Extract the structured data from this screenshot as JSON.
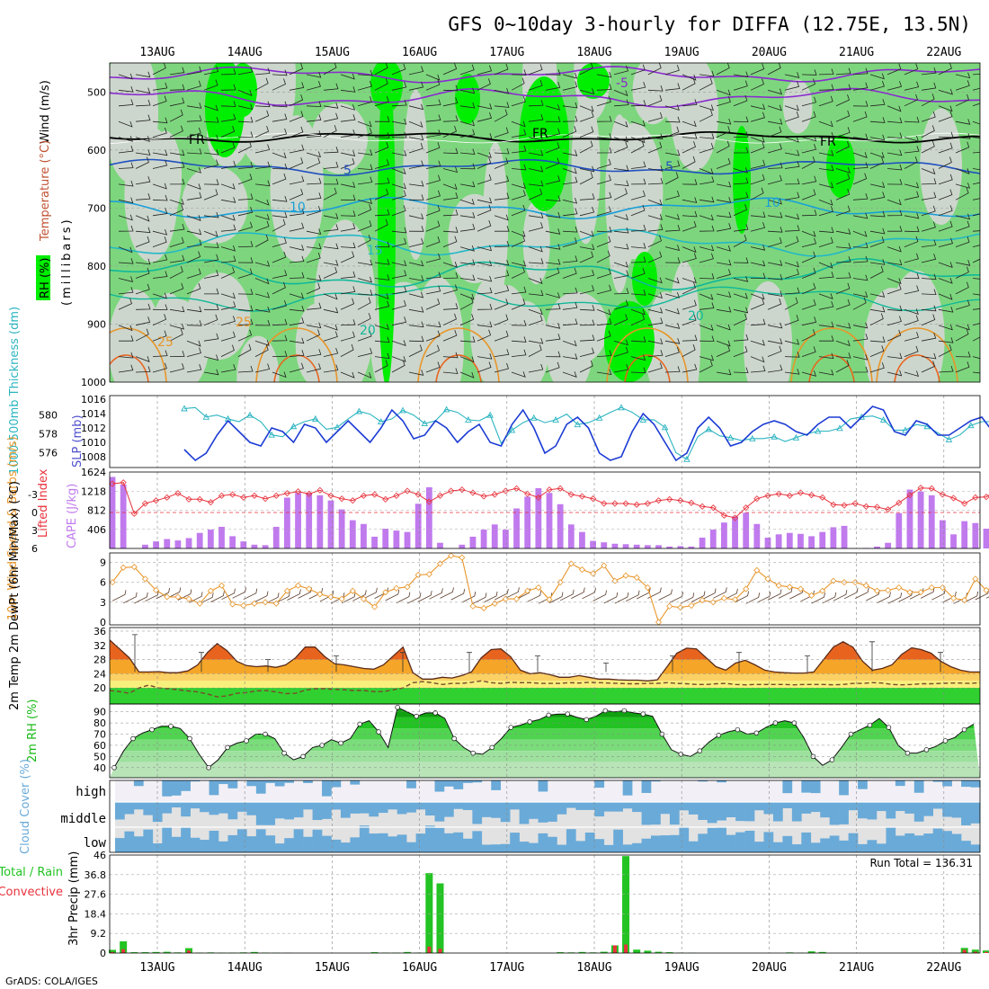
{
  "header": {
    "title": "GFS 0~10day 3-hourly for DIFFA (12.75E, 13.5N)",
    "credit": "GrADS: COLA/IGES"
  },
  "colors": {
    "rh_light": "#cdd6cd",
    "rh_mid": "#7dd67d",
    "rh_bright": "#00ee00",
    "slp": "#1c3cd4",
    "thickness": "#2bb4c0",
    "lifted_index": "#e8323c",
    "cape": "#c07aee",
    "wind10m": "#e8962a",
    "temp_high": "#e8641e",
    "temp_mid": "#f5a628",
    "temp_low": "#fbd064",
    "dew_fill": "#f8f07c",
    "rh2m_fill": "#18b818",
    "cloud": "#6aaad8",
    "cloud_bg": "#e2e2e2",
    "precip_total": "#22c322",
    "precip_conv": "#e8323c"
  },
  "chart_data": {
    "type": "meteogram",
    "title": "GFS 0~10day 3-hourly for DIFFA (12.75E, 13.5N)",
    "x_ticks": [
      "13AUG",
      "14AUG",
      "15AUG",
      "16AUG",
      "17AUG",
      "18AUG",
      "19AUG",
      "20AUG",
      "21AUG",
      "22AUG"
    ],
    "steps_per_day": 8,
    "panels": {
      "upper_air": {
        "ylabel": "(millibars)",
        "ylabel_parts": [
          "RH (%)",
          "Temperature (°C)",
          "Wind (m/s)"
        ],
        "yticks": [
          "500",
          "600",
          "700",
          "800",
          "900",
          "1000"
        ],
        "ylim": [
          1000,
          450
        ],
        "contour_labels": [
          "-5",
          "FR",
          "FR",
          "FR",
          "5",
          "5",
          "10",
          "10",
          "15",
          "20",
          "20",
          "25",
          "25"
        ]
      },
      "slp_thickness": {
        "ylabel_left": "1000-500mb Thickness (dm)",
        "ylabel_right": "SLP (mb)",
        "yticks_left": [
          "580",
          "578",
          "576"
        ],
        "yticks_right": [
          "1016",
          "1014",
          "1012",
          "1010",
          "1008"
        ],
        "slp": [
          1009,
          1007.5,
          1008.5,
          1011,
          1013,
          1011.5,
          1010,
          1009.5,
          1012,
          1011.5,
          1010,
          1012.5,
          1012,
          1010,
          1011.5,
          1013,
          1011.5,
          1010,
          1012,
          1014.5,
          1013,
          1010.5,
          1011,
          1013,
          1012,
          1010,
          1011.5,
          1012.5,
          1010,
          1009.5,
          1012.5,
          1014.5,
          1012,
          1008.5,
          1009.5,
          1012.5,
          1013.5,
          1012,
          1008.5,
          1007.5,
          1008,
          1011.5,
          1014,
          1012.5,
          1010,
          1007.5,
          1008.5,
          1012,
          1013.5,
          1012,
          1009.5,
          1010,
          1011.5,
          1012.5,
          1013,
          1012.5,
          1011.5,
          1011,
          1012.5,
          1013.5,
          1013.5,
          1012,
          1013.5,
          1015,
          1014.5,
          1011.5,
          1011,
          1013,
          1012.5,
          1011,
          1011,
          1012,
          1013,
          1013.5,
          1011.5,
          1010,
          1010.5,
          1012,
          1013.5,
          1014,
          1011.5,
          1009.5,
          1010,
          1012.5,
          1013.5,
          1011,
          1008.5,
          1009,
          1012,
          1012.5,
          1010.5,
          1010,
          1012.5,
          1012.5,
          1011,
          1012
        ],
        "thickness": [
          580.7,
          580.8,
          579.8,
          580.0,
          579.6,
          579.3,
          580.0,
          579.3,
          577.9,
          577.7,
          578.8,
          579.3,
          579.6,
          578.5,
          578.7,
          579.6,
          580.4,
          580.1,
          579.3,
          579.6,
          580.5,
          580.0,
          579.1,
          579.4,
          580.6,
          580.3,
          579.5,
          579.4,
          580.0,
          577.0,
          578.4,
          579.2,
          579.7,
          579.2,
          579.5,
          580.1,
          579.0,
          579.2,
          579.7,
          580.3,
          580.8,
          580.3,
          579.5,
          579.5,
          578.7,
          576.0,
          575.3,
          577.7,
          578.5,
          577.8,
          577.6,
          577.3,
          577.5,
          577.5,
          577.7,
          577.2,
          577.6,
          578.0,
          578.3,
          578.3,
          578.6,
          579.6,
          579.8,
          579.9,
          579.5,
          578.4,
          578.4,
          579.0,
          578.8,
          578.1,
          577.4,
          577.9,
          578.9,
          579.3,
          579.3,
          579.5,
          579.7,
          580.0,
          579.3,
          579.1,
          579.6,
          580.0,
          579.5,
          579.7,
          579.9,
          579.6,
          578.5,
          579.2,
          580.0,
          579.2,
          578.4,
          578.3,
          579.2,
          578.4,
          577.7,
          578.0
        ]
      },
      "cape_li": {
        "ylabel_left": "Lifted Index",
        "ylabel_right": "CAPE (J/kg)",
        "yticks_left": [
          "-3",
          "0",
          "3",
          "6"
        ],
        "yticks_right": [
          "1624",
          "1218",
          "812",
          "406"
        ],
        "cape": [
          1520,
          1360,
          0,
          80,
          150,
          200,
          170,
          220,
          330,
          400,
          460,
          260,
          150,
          80,
          70,
          460,
          1080,
          1180,
          1180,
          1130,
          1020,
          830,
          600,
          520,
          250,
          420,
          380,
          350,
          950,
          1300,
          120,
          0,
          80,
          250,
          400,
          510,
          400,
          850,
          1100,
          1280,
          1180,
          940,
          510,
          350,
          160,
          130,
          100,
          90,
          80,
          70,
          70,
          40,
          50,
          40,
          230,
          400,
          550,
          680,
          760,
          520,
          230,
          300,
          330,
          310,
          260,
          350,
          450,
          480,
          0,
          10,
          40,
          120,
          750,
          1250,
          1210,
          1130,
          600,
          300,
          580,
          540,
          420,
          330,
          850,
          1350,
          780,
          790,
          710,
          540,
          480,
          500,
          480,
          450
        ],
        "lifted_index": [
          -4.8,
          -5.0,
          0.2,
          -1.5,
          -2.0,
          -2.5,
          -3.2,
          -2.2,
          -2.2,
          -1.7,
          -2.8,
          -3.0,
          -2.5,
          -2.8,
          -2.3,
          -2.8,
          -3.2,
          -3.5,
          -3.1,
          -3.7,
          -2.8,
          -2.3,
          -2.0,
          -2.8,
          -3.0,
          -2.2,
          -2.8,
          -3.6,
          -3.0,
          -1.8,
          -2.8,
          -3.6,
          -3.8,
          -3.3,
          -2.7,
          -3.0,
          -3.6,
          -4.0,
          -3.1,
          -2.5,
          -3.8,
          -4.0,
          -3.0,
          -2.7,
          -2.3,
          -1.5,
          -1.5,
          -1.5,
          -1.3,
          -1.5,
          -2.0,
          -2.2,
          -2.0,
          -1.6,
          -1.0,
          -0.8,
          0.5,
          0.9,
          -0.8,
          -2.3,
          -2.8,
          -3.1,
          -2.8,
          -3.3,
          -2.9,
          -2.5,
          -1.3,
          -1.2,
          -1.5,
          -1.0,
          -0.9,
          -0.5,
          -1.6,
          -2.9,
          -4.1,
          -4.0,
          -3.0,
          -2.4,
          -1.5,
          -2.5,
          -2.6,
          -3.9,
          -4.3,
          -3.1,
          -4.6,
          -4.9,
          -4.4,
          -3.9,
          -3.5,
          -3.2,
          -3.0,
          -3.3
        ]
      },
      "wind10m": {
        "ylabel": "10m Wind Speed & Barbs (m/s)",
        "yticks": [
          "9",
          "6",
          "3",
          "0"
        ],
        "speed": [
          6.0,
          8.2,
          8.3,
          6.5,
          4.8,
          3.8,
          3.8,
          3.5,
          2.8,
          4.7,
          5.5,
          2.7,
          2.5,
          2.8,
          3.0,
          2.8,
          4.7,
          5.5,
          5.0,
          4.2,
          3.8,
          3.5,
          4.7,
          3.5,
          2.3,
          4.5,
          5.1,
          5.3,
          7.1,
          7.2,
          8.8,
          10.0,
          9.7,
          2.4,
          2.1,
          2.8,
          3.5,
          3.5,
          4.7,
          5.2,
          3.4,
          6.0,
          8.8,
          7.9,
          7.3,
          8.5,
          6.2,
          7.0,
          6.7,
          5.2,
          0.0,
          2.4,
          2.2,
          2.5,
          3.3,
          3.0,
          3.6,
          3.4,
          5.0,
          7.8,
          6.5,
          5.5,
          5.3,
          5.0,
          4.0,
          4.7,
          6.2,
          6.0,
          6.0,
          5.5,
          4.7,
          4.8,
          5.2,
          4.5,
          4.5,
          5.2,
          5.2,
          3.6,
          3.3,
          6.5,
          4.8,
          5.5,
          7.0,
          6.3,
          6.5,
          6.0,
          7.3,
          9.2,
          8.3,
          6.3,
          6.2,
          4.7,
          3.8,
          3.8,
          5.6,
          5.3
        ]
      },
      "temp2m": {
        "ylabel": "2m Temp 2m DewPt (6hr Min/Max) (°C)",
        "yticks": [
          "36",
          "32",
          "28",
          "24",
          "20"
        ],
        "temp": [
          33.5,
          31.0,
          28.5,
          24.5,
          24.5,
          24.6,
          24.3,
          24.3,
          24.8,
          26.5,
          30.0,
          32.5,
          30.5,
          27.5,
          26.3,
          26.0,
          26.2,
          25.8,
          26.5,
          28.5,
          31.5,
          31.5,
          28.8,
          26.8,
          26.5,
          26.0,
          25.5,
          25.3,
          26.5,
          29.0,
          31.5,
          24.3,
          22.5,
          22.5,
          23.0,
          22.8,
          23.5,
          24.5,
          28.5,
          30.8,
          31.0,
          28.8,
          25.0,
          24.0,
          24.3,
          23.8,
          23.0,
          23.0,
          23.5,
          23.0,
          22.5,
          22.5,
          22.3,
          22.2,
          22.2,
          22.0,
          22.3,
          26.0,
          29.8,
          31.2,
          31.0,
          28.5,
          26.0,
          25.0,
          27.0,
          27.8,
          26.5,
          25.0,
          24.5,
          24.3,
          24.2,
          24.2,
          24.5,
          28.0,
          31.5,
          33.0,
          31.5,
          27.5,
          25.0,
          25.5,
          26.5,
          29.5,
          31.3,
          30.8,
          29.8,
          27.5,
          26.0,
          25.0,
          24.5,
          24.5
        ],
        "dewpoint": [
          19.3,
          19.0,
          18.5,
          20.0,
          20.8,
          20.0,
          19.8,
          19.5,
          19.2,
          18.9,
          18.3,
          17.5,
          17.8,
          18.5,
          18.7,
          19.2,
          19.3,
          18.9,
          18.4,
          18.5,
          19.4,
          19.8,
          19.8,
          19.6,
          19.5,
          19.3,
          19.3,
          19.0,
          19.0,
          19.5,
          20.0,
          21.5,
          21.8,
          21.5,
          21.0,
          21.3,
          21.3,
          21.6,
          22.0,
          21.5,
          21.3,
          21.6,
          21.5,
          21.5,
          21.3,
          21.3,
          21.3,
          21.5,
          21.4,
          21.6,
          21.5,
          21.4,
          21.3,
          21.2,
          21.2,
          21.3,
          21.3,
          21.5,
          21.3,
          21.2,
          21.0,
          21.0,
          21.2,
          21.3,
          21.0,
          20.9,
          21.0,
          21.0,
          21.0,
          21.0,
          20.9,
          21.0,
          21.0,
          21.0,
          20.9,
          21.0,
          21.3,
          21.3,
          21.5,
          21.4,
          21.0,
          20.9,
          21.0,
          21.2,
          21.2,
          21.3,
          21.4,
          21.4,
          21.3,
          21.5
        ]
      },
      "rh2m": {
        "ylabel": "2m RH (%)",
        "yticks": [
          "90",
          "80",
          "70",
          "60",
          "50",
          "40"
        ],
        "rh": [
          40,
          55,
          66,
          71,
          74,
          77,
          77,
          75,
          66,
          52,
          40,
          47,
          58,
          62,
          64,
          70,
          70,
          66,
          53,
          47,
          50,
          58,
          60,
          65,
          62,
          66,
          79,
          82,
          72,
          58,
          94,
          90,
          86,
          89,
          89,
          84,
          66,
          58,
          53,
          52,
          58,
          66,
          76,
          78,
          81,
          83,
          87,
          88,
          88,
          85,
          83,
          86,
          91,
          90,
          91,
          89,
          88,
          86,
          70,
          56,
          52,
          50,
          55,
          63,
          69,
          72,
          74,
          70,
          71,
          76,
          80,
          82,
          80,
          67,
          50,
          42,
          47,
          58,
          70,
          74,
          78,
          84,
          76,
          60,
          53,
          53,
          56,
          59,
          64,
          67,
          74,
          79
        ]
      },
      "cloud": {
        "ylabel": "Cloud Cover (%)",
        "levels": [
          "high",
          "middle",
          "low"
        ]
      },
      "precip": {
        "ylabel": "3hr Precip (mm)",
        "legend": [
          "Total / Rain",
          "Convective"
        ],
        "run_total_label": "Run Total = 136.31",
        "yticks": [
          "46",
          "36.8",
          "27.6",
          "18.4",
          "9.2",
          "0"
        ],
        "total": [
          1.5,
          5.5,
          0.4,
          0.4,
          0.5,
          0.6,
          0.3,
          2.3,
          0.2,
          0.3,
          0.2,
          0.2,
          0.3,
          0.5,
          0.2,
          0.1,
          0.1,
          0,
          0,
          0,
          0,
          0,
          0,
          0,
          0.4,
          0.2,
          0.2,
          0.5,
          0.2,
          37.5,
          32.7,
          0,
          0,
          0,
          0,
          0,
          0,
          0,
          0,
          0,
          0,
          0.4,
          0.3,
          0.5,
          0.3,
          0.6,
          3.6,
          45.5,
          1.6,
          1.1,
          0.6,
          0.4,
          0.2,
          0.1,
          0,
          0,
          0,
          0,
          0,
          0,
          0,
          0,
          0.3,
          0.1,
          0.8,
          0.5,
          0,
          0,
          0,
          0,
          0,
          0,
          0,
          0,
          0,
          0,
          0,
          0,
          2.4,
          1.6,
          1.2,
          1.3,
          3.0,
          0.4,
          0,
          0,
          0,
          0,
          0,
          0,
          0,
          0
        ],
        "convective": [
          0.5,
          1.8,
          0,
          0,
          0,
          0,
          0,
          1.2,
          0,
          0,
          0,
          0,
          0,
          0,
          0,
          0,
          0,
          0,
          0,
          0,
          0,
          0,
          0,
          0,
          0,
          0,
          0,
          0,
          0,
          3.0,
          2.0,
          0,
          0,
          0,
          0,
          0,
          0,
          0,
          0,
          0,
          0,
          0,
          0,
          0,
          0,
          0,
          3.6,
          4.0,
          0,
          0,
          0,
          0,
          0,
          0,
          0,
          0,
          0,
          0,
          0,
          0,
          0,
          0,
          0,
          0,
          0,
          0,
          0,
          0,
          0,
          0,
          0,
          0,
          0,
          0,
          0,
          0,
          0,
          0,
          1.5,
          0.6,
          0.5,
          1.0,
          2.4,
          0,
          0,
          0,
          0,
          0,
          0,
          0,
          0
        ]
      }
    }
  }
}
